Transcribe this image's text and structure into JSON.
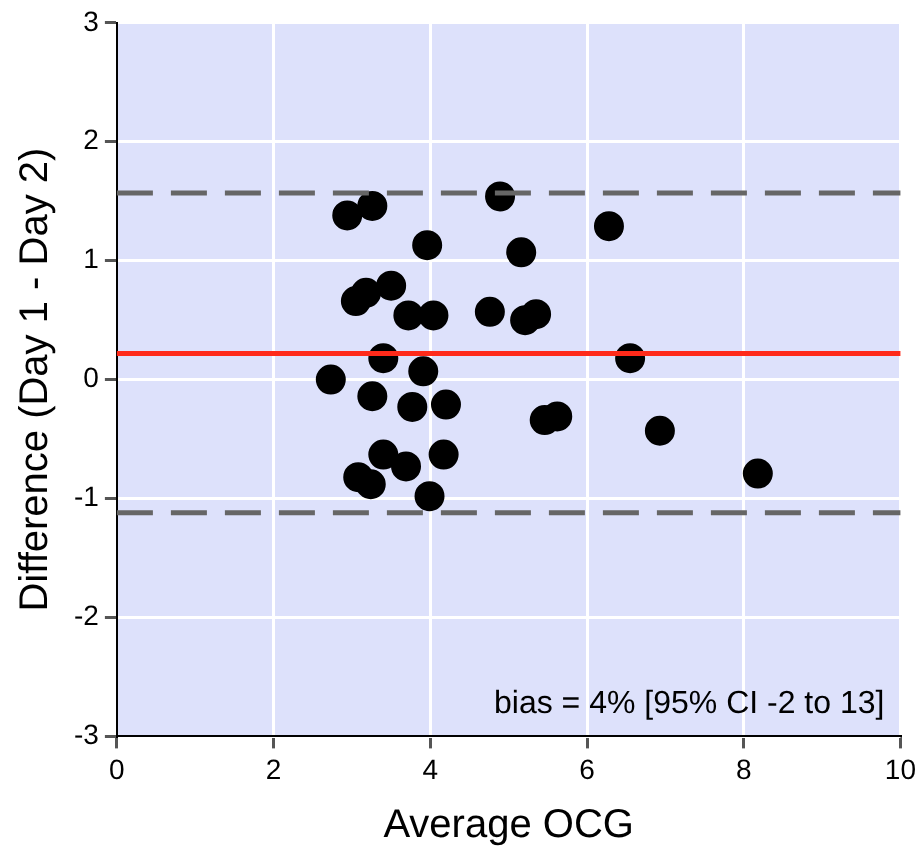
{
  "chart_data": {
    "type": "scatter",
    "xlabel": "Average OCG",
    "ylabel": "Difference (Day 1 - Day 2)",
    "x": [
      2.94,
      3.26,
      4.89,
      3.96,
      5.16,
      6.28,
      3.05,
      3.18,
      3.5,
      3.72,
      4.04,
      4.76,
      5.21,
      5.35,
      3.4,
      3.91,
      6.55,
      2.73,
      3.26,
      3.77,
      4.2,
      5.46,
      5.62,
      6.93,
      3.4,
      3.69,
      4.17,
      3.08,
      3.24,
      3.99,
      8.18
    ],
    "values": [
      1.38,
      1.46,
      1.54,
      1.13,
      1.07,
      1.29,
      0.66,
      0.73,
      0.79,
      0.54,
      0.54,
      0.57,
      0.5,
      0.55,
      0.18,
      0.07,
      0.18,
      0.0,
      -0.14,
      -0.23,
      -0.21,
      -0.34,
      -0.31,
      -0.43,
      -0.63,
      -0.73,
      -0.63,
      -0.82,
      -0.88,
      -0.98,
      -0.79
    ],
    "color": "#000000",
    "marker": "circle",
    "xlim": [
      0,
      10
    ],
    "xticks": [
      0,
      2,
      4,
      6,
      8,
      10
    ],
    "ylim": [
      -3,
      3
    ],
    "yticks": [
      -3,
      -2,
      -1,
      0,
      1,
      2,
      3
    ],
    "grid": true,
    "ref_lines": [
      {
        "axis": "y",
        "value": 0.22,
        "color": "#ff2a1a",
        "line_style": "solid"
      },
      {
        "axis": "y",
        "value": 1.57,
        "color": "#666666",
        "line_style": "dashed"
      },
      {
        "axis": "y",
        "value": -1.12,
        "color": "#666666",
        "line_style": "dashed"
      }
    ],
    "annotations": [
      "bias = 4% [95% CI -2 to 13]"
    ]
  }
}
